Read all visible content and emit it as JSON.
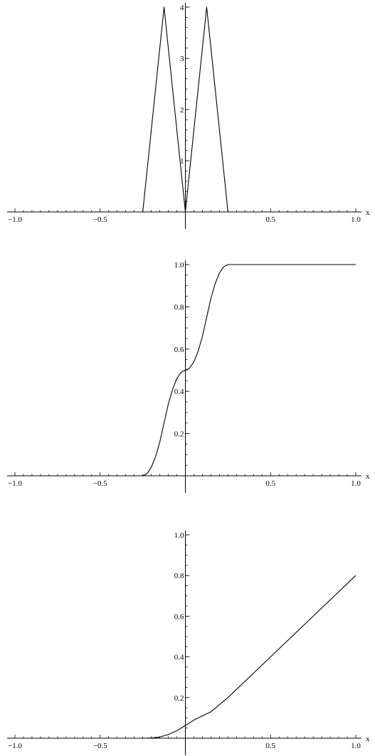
{
  "chart_data": [
    {
      "type": "line",
      "xlabel": "x",
      "xlim": [
        -1.0,
        1.0
      ],
      "ylim": [
        0,
        4
      ],
      "x_ticks": [
        -1.0,
        -0.5,
        0.5,
        1.0
      ],
      "x_tick_labels": [
        "−1.0",
        "−0.5",
        "0.5",
        "1.0"
      ],
      "y_ticks": [
        1,
        2,
        3,
        4
      ],
      "y_tick_labels": [
        "1",
        "2",
        "3",
        "4"
      ],
      "series": [
        {
          "x": [
            -1.0,
            -0.25,
            -0.125,
            0.0,
            0.125,
            0.25,
            1.0
          ],
          "y": [
            0,
            0,
            4,
            0,
            4,
            0,
            0
          ]
        }
      ]
    },
    {
      "type": "line",
      "xlabel": "x",
      "xlim": [
        -1.0,
        1.0
      ],
      "ylim": [
        0,
        1.0
      ],
      "x_ticks": [
        -1.0,
        -0.5,
        0.5,
        1.0
      ],
      "x_tick_labels": [
        "−1.0",
        "−0.5",
        "0.5",
        "1.0"
      ],
      "y_ticks": [
        0.2,
        0.4,
        0.6,
        0.8,
        1.0
      ],
      "y_tick_labels": [
        "0.2",
        "0.4",
        "0.6",
        "0.8",
        "1.0"
      ],
      "series": [
        {
          "x": [
            -1.0,
            -0.25,
            -0.225,
            -0.2,
            -0.175,
            -0.15,
            -0.125,
            -0.1,
            -0.075,
            -0.05,
            -0.025,
            0.0,
            0.025,
            0.05,
            0.075,
            0.1,
            0.125,
            0.15,
            0.175,
            0.2,
            0.225,
            0.25,
            1.0
          ],
          "y": [
            0,
            0,
            0.01,
            0.04,
            0.09,
            0.16,
            0.25,
            0.34,
            0.41,
            0.46,
            0.49,
            0.5,
            0.51,
            0.54,
            0.59,
            0.66,
            0.75,
            0.84,
            0.91,
            0.96,
            0.99,
            1.0,
            1.0
          ]
        }
      ]
    },
    {
      "type": "line",
      "xlabel": "x",
      "xlim": [
        -1.0,
        1.0
      ],
      "ylim": [
        0,
        1.0
      ],
      "x_ticks": [
        -1.0,
        -0.5,
        0.5,
        1.0
      ],
      "x_tick_labels": [
        "−1.0",
        "−0.5",
        "0.5",
        "1.0"
      ],
      "y_ticks": [
        0.2,
        0.4,
        0.6,
        0.8,
        1.0
      ],
      "y_tick_labels": [
        "0.2",
        "0.4",
        "0.6",
        "0.8",
        "1.0"
      ],
      "series": [
        {
          "x": [
            -1.0,
            -0.25,
            -0.2,
            -0.15,
            -0.1,
            -0.05,
            0.0,
            0.05,
            0.1,
            0.15,
            0.2,
            0.25,
            0.5,
            0.75,
            1.0
          ],
          "y": [
            0,
            0,
            0.001,
            0.006,
            0.018,
            0.037,
            0.0625,
            0.089,
            0.11,
            0.13,
            0.165,
            0.2,
            0.4,
            0.6,
            0.8
          ]
        }
      ]
    }
  ]
}
